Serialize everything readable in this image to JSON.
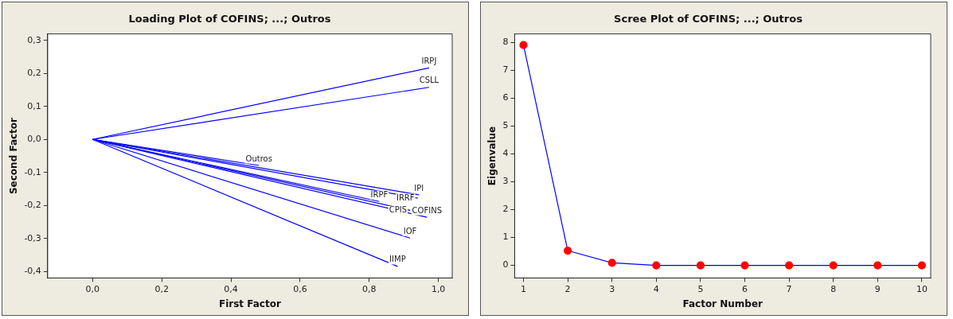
{
  "chart_data": [
    {
      "type": "line",
      "title": "Loading Plot of COFINS; ...; Outros",
      "xlabel": "First Factor",
      "ylabel": "Second Factor",
      "marker": "none",
      "legend": false,
      "grid": false,
      "line_style": "solid",
      "xlim": [
        -0.13,
        1.04
      ],
      "ylim": [
        -0.42,
        0.32
      ],
      "xticks": [
        {
          "value": 0,
          "label": "0,0"
        },
        {
          "value": 0.2,
          "label": "0,2"
        },
        {
          "value": 0.4,
          "label": "0,4"
        },
        {
          "value": 0.6,
          "label": "0,6"
        },
        {
          "value": 0.8,
          "label": "0,8"
        },
        {
          "value": 1,
          "label": "1,0"
        }
      ],
      "yticks": [
        {
          "value": -0.4,
          "label": "-0,4"
        },
        {
          "value": -0.3,
          "label": "-0,3"
        },
        {
          "value": -0.2,
          "label": "-0,2"
        },
        {
          "value": -0.1,
          "label": "-0,1"
        },
        {
          "value": 0,
          "label": "0,0"
        },
        {
          "value": 0.1,
          "label": "0,1"
        },
        {
          "value": 0.2,
          "label": "0,2"
        },
        {
          "value": 0.3,
          "label": "0,3"
        }
      ],
      "series": [
        {
          "name": "IRPJ",
          "color": "#0000ff",
          "x": [
            0,
            0.973
          ],
          "values": [
            0,
            0.217
          ]
        },
        {
          "name": "CSLL",
          "color": "#0000ff",
          "x": [
            0,
            0.973
          ],
          "values": [
            0,
            0.158
          ]
        },
        {
          "name": "Outros",
          "color": "#0000ff",
          "x": [
            0,
            0.481
          ],
          "values": [
            0,
            -0.079
          ]
        },
        {
          "name": "IPI",
          "color": "#0000ff",
          "x": [
            0,
            0.944
          ],
          "values": [
            0,
            -0.168
          ]
        },
        {
          "name": "IRRF",
          "color": "#0000ff",
          "x": [
            0,
            0.94
          ],
          "values": [
            0,
            -0.178
          ]
        },
        {
          "name": "IRPF",
          "color": "#0000ff",
          "x": [
            0,
            0.829
          ],
          "values": [
            0,
            -0.188
          ]
        },
        {
          "name": "CPIS",
          "color": "#0000ff",
          "x": [
            0,
            0.918
          ],
          "values": [
            0,
            -0.215
          ]
        },
        {
          "name": "COFINS",
          "color": "#0000ff",
          "x": [
            0,
            0.967
          ],
          "values": [
            0,
            -0.236
          ]
        },
        {
          "name": "IOF",
          "color": "#0000ff",
          "x": [
            0,
            0.918
          ],
          "values": [
            0,
            -0.299
          ]
        },
        {
          "name": "IIMP",
          "color": "#0000ff",
          "x": [
            0,
            0.882
          ],
          "values": [
            0,
            -0.385
          ]
        }
      ]
    },
    {
      "type": "line",
      "title": "Scree Plot of COFINS; ...; Outros",
      "xlabel": "Factor Number",
      "ylabel": "Eigenvalue",
      "marker": "circle",
      "legend": false,
      "grid": false,
      "line_style": "solid",
      "xlim": [
        0.8,
        10.2
      ],
      "ylim": [
        -0.45,
        8.3
      ],
      "xticks": [
        1,
        2,
        3,
        4,
        5,
        6,
        7,
        8,
        9,
        10
      ],
      "yticks": [
        0,
        1,
        2,
        3,
        4,
        5,
        6,
        7,
        8
      ],
      "series": [
        {
          "color": "#0000ff",
          "colors": [
            "#ff0000",
            "#ff0000",
            "#ff0000",
            "#ff0000",
            "#ff0000",
            "#ff0000",
            "#ff0000",
            "#ff0000",
            "#ff0000",
            "#ff0000"
          ],
          "x": [
            1,
            2,
            3,
            4,
            5,
            6,
            7,
            8,
            9,
            10
          ],
          "values": [
            7.9,
            0.53,
            0.09,
            0,
            0,
            0,
            0,
            0,
            0,
            0
          ]
        }
      ]
    }
  ]
}
